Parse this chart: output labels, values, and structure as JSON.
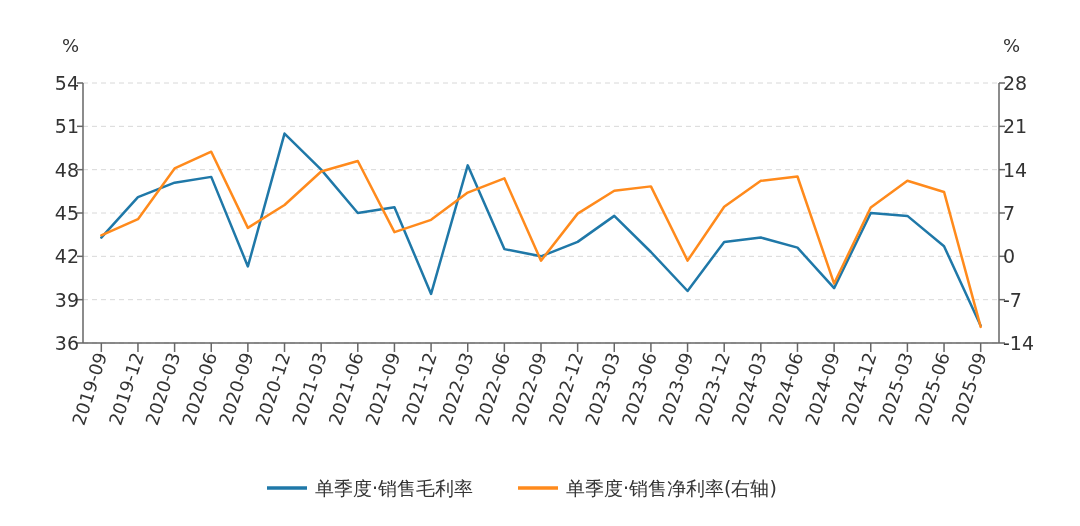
{
  "chart_data": {
    "type": "line",
    "ylabel": "%",
    "y2label": "%",
    "categories": [
      "2019-09",
      "2019-12",
      "2020-03",
      "2020-06",
      "2020-09",
      "2020-12",
      "2021-03",
      "2021-06",
      "2021-09",
      "2021-12",
      "2022-03",
      "2022-06",
      "2022-09",
      "2022-12",
      "2023-03",
      "2023-06",
      "2023-09",
      "2023-12",
      "2024-03",
      "2024-06",
      "2024-09",
      "2024-12",
      "2025-03",
      "2025-06",
      "2025-09"
    ],
    "series": [
      {
        "name": "单季度·销售毛利率",
        "color": "#1f78a8",
        "values": [
          43.3,
          46.1,
          47.1,
          47.5,
          41.3,
          50.5,
          48.0,
          45.0,
          45.4,
          39.4,
          48.3,
          42.5,
          42.0,
          43.0,
          44.8,
          42.3,
          39.6,
          43.0,
          43.3,
          42.6,
          39.8,
          45.0,
          44.8,
          42.7,
          37.2
        ]
      },
      {
        "name": "单季度·销售净利率(右轴)",
        "color": "#ff8a1c",
        "axis": "y2",
        "values": [
          3.4,
          6.0,
          14.2,
          16.9,
          4.6,
          8.3,
          13.7,
          15.4,
          3.9,
          5.9,
          10.3,
          12.6,
          -0.7,
          6.9,
          10.6,
          11.3,
          -0.7,
          8.0,
          12.2,
          12.9,
          -4.4,
          7.9,
          12.2,
          10.4,
          -11.4
        ]
      }
    ],
    "ylim": [
      36,
      54
    ],
    "yticks": [
      36,
      39,
      42,
      45,
      48,
      51,
      54
    ],
    "y2lim": [
      -14,
      28
    ],
    "y2ticks": [
      -14,
      -7,
      0,
      7,
      14,
      21,
      28
    ],
    "grid": "y",
    "legend": "bottom",
    "line_style": "solid",
    "marker": "none"
  }
}
